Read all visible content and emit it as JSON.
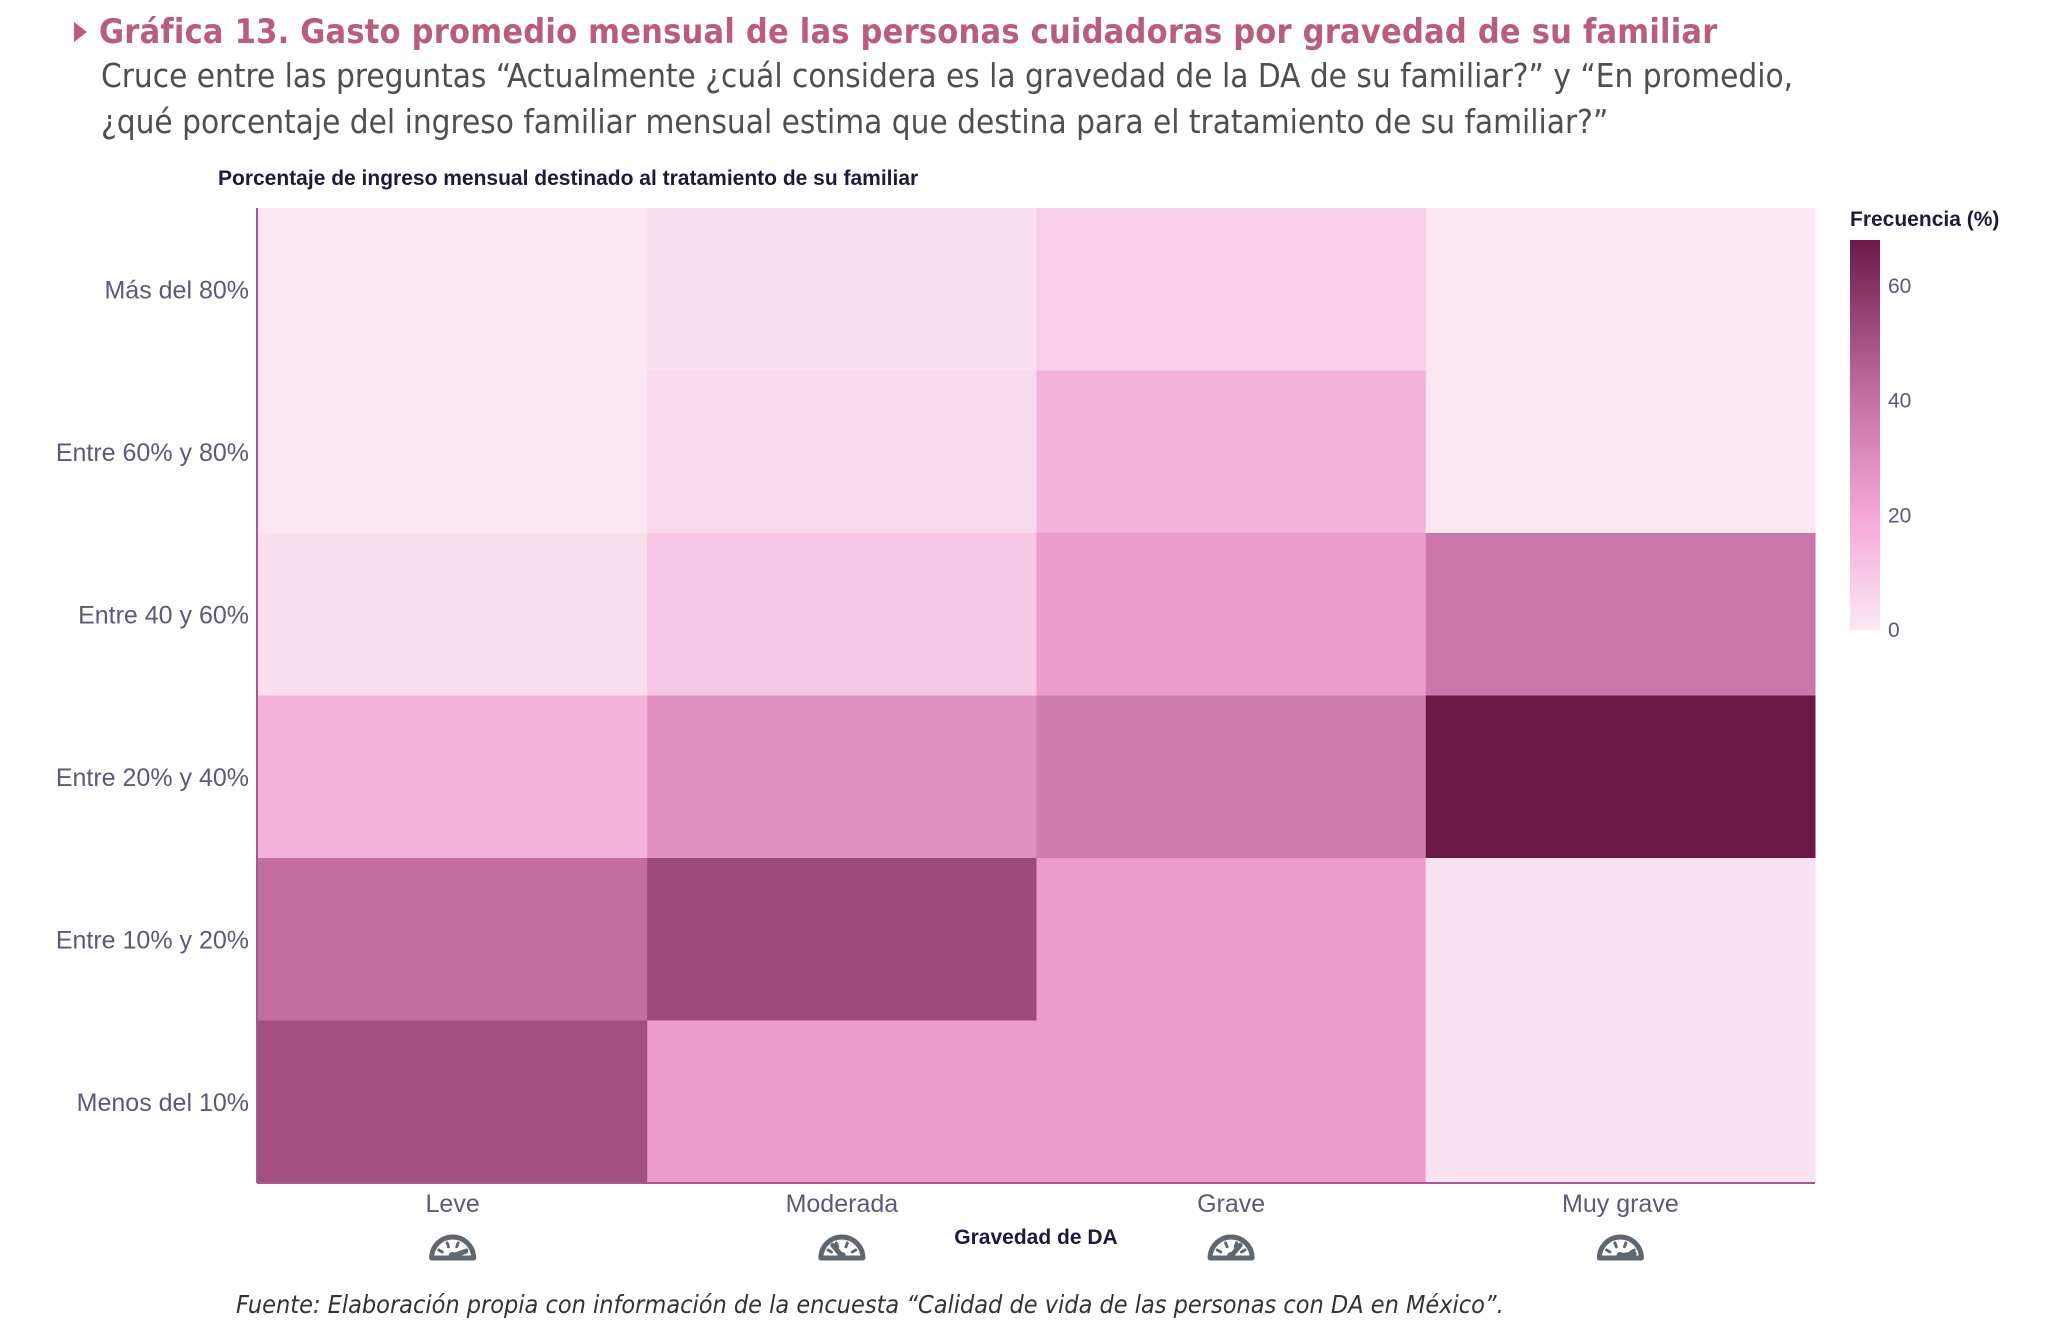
{
  "header": {
    "title": "Gráfica 13. Gasto promedio mensual de las personas cuidadoras por gravedad de su familiar",
    "subtitle_line1": "Cruce entre las preguntas “Actualmente ¿cuál considera es la gravedad de la DA de su familiar?” y “En promedio,",
    "subtitle_line2": "¿qué porcentaje del ingreso familiar mensual estima que destina para el tratamiento de su familiar?”"
  },
  "footer": {
    "source": "Fuente: Elaboración propia con información de la encuesta “Calidad de vida de las personas con DA en México”."
  },
  "colors": {
    "title": "#b95c80",
    "scale": [
      "#fbe9f3",
      "#f3a6d6",
      "#c46fa4",
      "#6b1a48"
    ]
  },
  "chart_data": {
    "type": "heatmap",
    "ylabel": "Porcentaje de ingreso mensual destinado al tratamiento de su familiar",
    "xlabel": "Gravedad de DA",
    "x_categories": [
      "Leve",
      "Moderada",
      "Grave",
      "Muy grave"
    ],
    "y_categories": [
      "Más del 80%",
      "Entre 60% y 80%",
      "Entre 40 y 60%",
      "Entre 20% y 40%",
      "Entre 10% y 20%",
      "Menos del 10%"
    ],
    "x_icons": [
      "gauge-low-icon",
      "gauge-moderate-icon",
      "gauge-high-icon",
      "gauge-very-high-icon"
    ],
    "values": [
      [
        1,
        3,
        8,
        1
      ],
      [
        1,
        5,
        17,
        1
      ],
      [
        3,
        10,
        24,
        38
      ],
      [
        17,
        29,
        36,
        68
      ],
      [
        41,
        53,
        24,
        2
      ],
      [
        51,
        24,
        24,
        2
      ]
    ],
    "colorbar": {
      "title": "Frecuencia (%)",
      "range": [
        0,
        68
      ],
      "ticks": [
        0,
        20,
        40,
        60
      ]
    }
  }
}
